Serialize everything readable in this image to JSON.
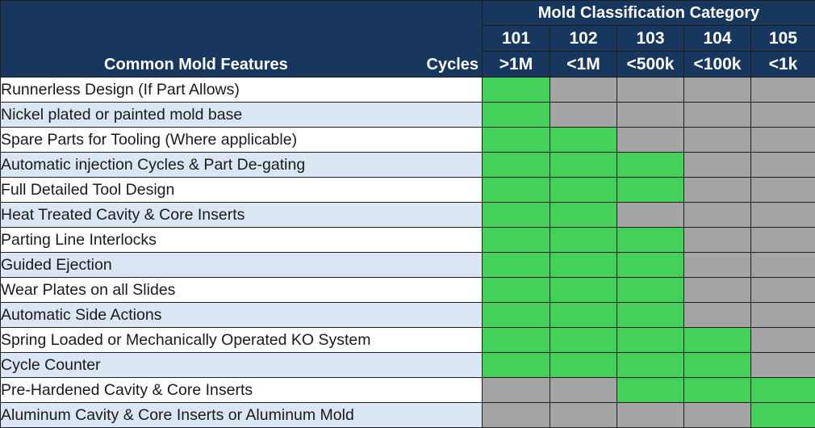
{
  "header": {
    "features_label": "Common Mold Features",
    "cycles_label": "Cycles",
    "category_title": "Mold Classification Category"
  },
  "classes": [
    {
      "code": "101",
      "cycles": ">1M"
    },
    {
      "code": "102",
      "cycles": "<1M"
    },
    {
      "code": "103",
      "cycles": "<500k"
    },
    {
      "code": "104",
      "cycles": "<100k"
    },
    {
      "code": "105",
      "cycles": "<1k"
    }
  ],
  "colors": {
    "header_bg": "#17375e",
    "applies": "#44d159",
    "not_applicable": "#a5a5a5",
    "row_alt": "#dbe6f4"
  },
  "rows": [
    {
      "feature": "Runnerless Design (If Part Allows)",
      "applies": [
        1,
        0,
        0,
        0,
        0
      ]
    },
    {
      "feature": "Nickel plated or painted mold base",
      "applies": [
        1,
        0,
        0,
        0,
        0
      ]
    },
    {
      "feature": "Spare Parts for Tooling (Where applicable)",
      "applies": [
        1,
        1,
        0,
        0,
        0
      ]
    },
    {
      "feature": "Automatic injection Cycles & Part De-gating",
      "applies": [
        1,
        1,
        1,
        0,
        0
      ]
    },
    {
      "feature": "Full Detailed Tool Design",
      "applies": [
        1,
        1,
        1,
        0,
        0
      ]
    },
    {
      "feature": "Heat Treated Cavity & Core Inserts",
      "applies": [
        1,
        1,
        0,
        0,
        0
      ]
    },
    {
      "feature": "Parting Line Interlocks",
      "applies": [
        1,
        1,
        1,
        0,
        0
      ]
    },
    {
      "feature": "Guided Ejection",
      "applies": [
        1,
        1,
        1,
        0,
        0
      ]
    },
    {
      "feature": "Wear Plates on all Slides",
      "applies": [
        1,
        1,
        1,
        0,
        0
      ]
    },
    {
      "feature": "Automatic Side Actions",
      "applies": [
        1,
        1,
        1,
        0,
        0
      ]
    },
    {
      "feature": "Spring Loaded or Mechanically Operated KO System",
      "applies": [
        1,
        1,
        1,
        1,
        0
      ]
    },
    {
      "feature": "Cycle Counter",
      "applies": [
        1,
        1,
        1,
        1,
        0
      ]
    },
    {
      "feature": "Pre-Hardened Cavity & Core Inserts",
      "applies": [
        0,
        0,
        1,
        1,
        1
      ]
    },
    {
      "feature": "Aluminum Cavity & Core Inserts or Aluminum Mold",
      "applies": [
        0,
        0,
        0,
        0,
        1
      ]
    }
  ]
}
